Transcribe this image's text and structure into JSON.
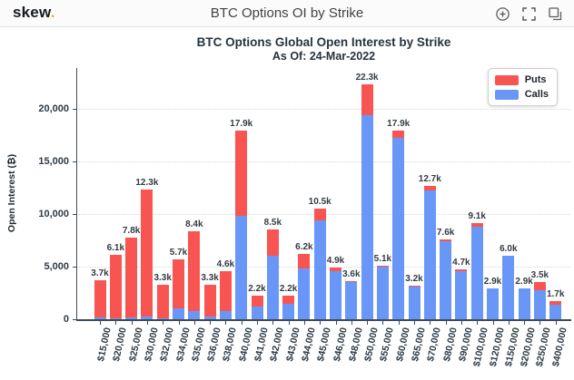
{
  "header": {
    "logo": "skew",
    "logo_dot": ".",
    "title": "BTC Options OI by Strike",
    "icons": [
      {
        "name": "zoom-in-icon"
      },
      {
        "name": "fullscreen-icon"
      },
      {
        "name": "duplicate-icon"
      }
    ]
  },
  "colors": {
    "puts": "#f85552",
    "calls": "#6997f7",
    "accent_orange": "#f7a326",
    "axis_text": "#2e3a44"
  },
  "chart_data": {
    "type": "bar",
    "stacked": true,
    "title": "BTC Options Global Open Interest by Strike",
    "subtitle": "As Of: 24-Mar-2022",
    "xlabel": "",
    "ylabel": "Open Interest (₿)",
    "ylim": [
      0,
      24000
    ],
    "ytick_values": [
      0,
      5000,
      10000,
      15000,
      20000
    ],
    "ytick_labels": [
      "0",
      "5,000",
      "10,000",
      "15,000",
      "20,000"
    ],
    "grid": "dotted-horizontal",
    "legend_position": "top-right",
    "categories": [
      "$15,000",
      "$20,000",
      "$25,000",
      "$30,000",
      "$32,000",
      "$34,000",
      "$35,000",
      "$36,000",
      "$38,000",
      "$40,000",
      "$41,000",
      "$42,000",
      "$43,000",
      "$44,000",
      "$45,000",
      "$46,000",
      "$48,000",
      "$50,000",
      "$55,000",
      "$60,000",
      "$65,000",
      "$70,000",
      "$80,000",
      "$90,000",
      "$100,000",
      "$120,000",
      "$150,000",
      "$200,000",
      "$250,000",
      "$400,000"
    ],
    "series": [
      {
        "name": "Puts",
        "color": "#f85552",
        "values": [
          3500,
          6000,
          7600,
          12000,
          3200,
          4700,
          7600,
          3000,
          3800,
          8100,
          1000,
          2500,
          700,
          1400,
          1100,
          300,
          100,
          2900,
          100,
          700,
          100,
          500,
          200,
          100,
          300,
          0,
          0,
          0,
          700,
          300
        ]
      },
      {
        "name": "Calls",
        "color": "#6997f7",
        "values": [
          200,
          100,
          200,
          300,
          100,
          1000,
          800,
          300,
          800,
          9800,
          1200,
          6000,
          1500,
          4800,
          9400,
          4600,
          3500,
          19400,
          5000,
          17200,
          3100,
          12200,
          7400,
          4600,
          8800,
          2900,
          6000,
          2900,
          2800,
          1400
        ]
      }
    ],
    "totals_labels": [
      "3.7k",
      "6.1k",
      "7.8k",
      "12.3k",
      "3.3k",
      "5.7k",
      "8.4k",
      "3.3k",
      "4.6k",
      "17.9k",
      "2.2k",
      "8.5k",
      "2.2k",
      "6.2k",
      "10.5k",
      "4.9k",
      "3.6k",
      "22.3k",
      "5.1k",
      "17.9k",
      "3.2k",
      "12.7k",
      "7.6k",
      "4.7k",
      "9.1k",
      "2.9k",
      "6.0k",
      "2.9k",
      "3.5k",
      "1.7k"
    ],
    "legend": [
      {
        "label": "Puts",
        "color": "#f85552"
      },
      {
        "label": "Calls",
        "color": "#6997f7"
      }
    ]
  }
}
